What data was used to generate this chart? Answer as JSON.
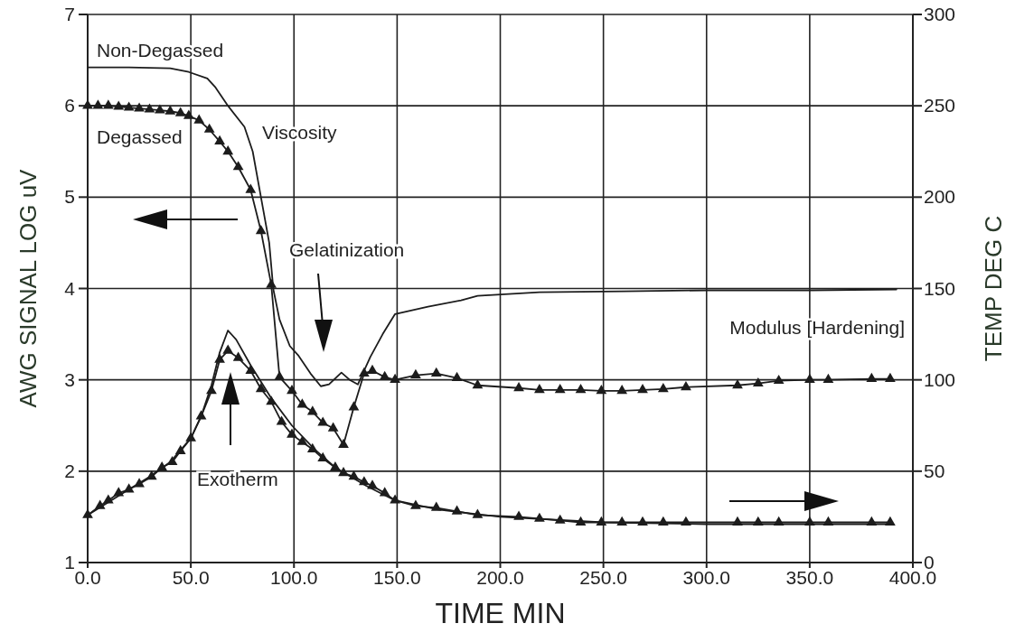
{
  "chart_data": {
    "type": "line",
    "xlabel": "TIME MIN",
    "ylabel": "AWG SIGNAL LOG uV",
    "y2label": "TEMP DEG C",
    "xlim": [
      0,
      400
    ],
    "xticks": [
      {
        "value": 0,
        "label": "0.0"
      },
      {
        "value": 50,
        "label": "50.0"
      },
      {
        "value": 100,
        "label": "100.0"
      },
      {
        "value": 150,
        "label": "150.0"
      },
      {
        "value": 200,
        "label": "200.0"
      },
      {
        "value": 250,
        "label": "250.0"
      },
      {
        "value": 300,
        "label": "300.0"
      },
      {
        "value": 350,
        "label": "350.0"
      },
      {
        "value": 400,
        "label": "400.0"
      }
    ],
    "ylim": [
      1,
      7
    ],
    "yticks": [
      1,
      2,
      3,
      4,
      5,
      6,
      7
    ],
    "y2lim": [
      0,
      300
    ],
    "y2ticks": [
      0,
      50,
      100,
      150,
      200,
      250,
      300
    ],
    "grid": true,
    "legend": "top left",
    "line_style": "solid",
    "annotations": [
      "Viscosity",
      "Gelatinization",
      "Modulus [Hardening]",
      "Exotherm"
    ],
    "series": [
      {
        "name": "Non-Degassed",
        "color": "#1c1c1c",
        "marker": "none",
        "x": [
          0,
          20,
          40,
          49,
          58,
          62,
          68,
          76,
          80,
          84,
          88,
          90,
          93,
          98,
          102,
          108,
          113,
          117,
          123,
          127,
          131,
          137,
          143,
          149,
          165,
          181,
          189,
          219,
          260,
          300,
          350,
          392
        ],
        "values": [
          6.42,
          6.42,
          6.41,
          6.37,
          6.3,
          6.2,
          6.0,
          5.77,
          5.5,
          5.0,
          4.5,
          3.99,
          3.66,
          3.37,
          3.27,
          3.07,
          2.93,
          2.95,
          3.08,
          3.0,
          2.95,
          3.25,
          3.5,
          3.72,
          3.8,
          3.87,
          3.92,
          3.96,
          3.97,
          3.98,
          3.98,
          3.99
        ]
      },
      {
        "name": "Degassed",
        "color": "#1c1c1c",
        "marker": "triangle",
        "x": [
          0,
          5,
          10,
          15,
          20,
          25,
          30,
          35,
          40,
          45,
          49,
          54,
          59,
          64,
          68,
          73,
          79,
          84,
          89,
          93,
          99,
          104,
          109,
          114,
          119,
          124,
          129,
          134,
          138,
          144,
          149,
          159,
          169,
          179,
          189,
          209,
          219,
          229,
          239,
          249,
          259,
          269,
          279,
          290,
          315,
          325,
          335,
          350,
          359,
          380,
          389
        ],
        "values": [
          6.0,
          6.0,
          6.0,
          5.99,
          5.98,
          5.97,
          5.96,
          5.95,
          5.94,
          5.92,
          5.89,
          5.84,
          5.74,
          5.61,
          5.5,
          5.33,
          5.08,
          4.63,
          4.04,
          3.03,
          2.88,
          2.73,
          2.65,
          2.53,
          2.47,
          2.29,
          2.7,
          3.07,
          3.1,
          3.03,
          3.0,
          3.05,
          3.07,
          3.02,
          2.94,
          2.91,
          2.89,
          2.89,
          2.89,
          2.88,
          2.88,
          2.89,
          2.9,
          2.92,
          2.94,
          2.96,
          2.99,
          3.0,
          3.0,
          3.01,
          3.01
        ]
      },
      {
        "color": "#1c1c1c",
        "marker": "none",
        "axis": "y2",
        "x": [
          0,
          10,
          20,
          30,
          40,
          50,
          55,
          60,
          64,
          68,
          72,
          79,
          89,
          99,
          110,
          120,
          135,
          149,
          170,
          200,
          250,
          300,
          350,
          390
        ],
        "values": [
          26,
          33,
          40,
          47,
          55,
          68,
          80,
          97,
          115,
          127,
          122,
          108,
          90,
          75,
          62,
          52,
          42,
          34,
          29,
          25,
          22,
          21,
          21,
          21
        ]
      },
      {
        "color": "#1c1c1c",
        "marker": "triangle",
        "axis": "y2",
        "x": [
          0,
          6,
          10,
          15,
          20,
          25,
          31,
          36,
          41,
          45,
          50,
          55,
          60,
          64,
          68,
          73,
          79,
          84,
          89,
          94,
          99,
          104,
          109,
          114,
          120,
          124,
          129,
          134,
          138,
          144,
          149,
          159,
          169,
          179,
          189,
          209,
          219,
          229,
          239,
          249,
          259,
          269,
          279,
          290,
          315,
          325,
          335,
          350,
          359,
          380,
          389
        ],
        "values": [
          26,
          31,
          34,
          38,
          40,
          43,
          47,
          52,
          55,
          61,
          68,
          80,
          94,
          111,
          116,
          112,
          105,
          95,
          88,
          77,
          70,
          66,
          62,
          57,
          52,
          49,
          47,
          44,
          42,
          38,
          34,
          31,
          30,
          28,
          26,
          25,
          24,
          23,
          22,
          22,
          22,
          22,
          22,
          22,
          22,
          22,
          22,
          22,
          22,
          22,
          22
        ]
      }
    ]
  }
}
